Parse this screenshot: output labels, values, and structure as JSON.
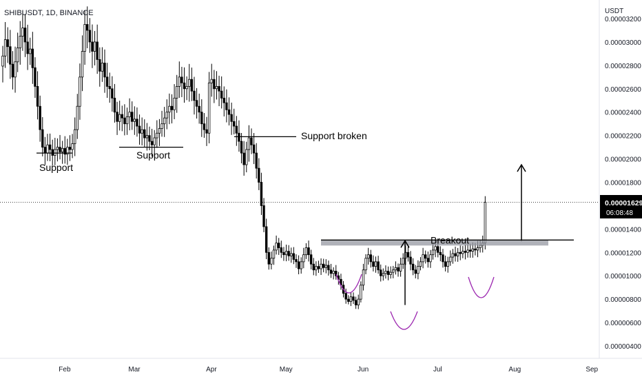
{
  "header": {
    "symbol_line": "SHIBUSDT, 1D, BINANCE"
  },
  "price_scale": {
    "unit": "USDT",
    "current_price": "0.00001629",
    "countdown": "06:08:48",
    "ticks": [
      "0.00003200",
      "0.00003000",
      "0.00002800",
      "0.00002600",
      "0.00002400",
      "0.00002200",
      "0.00002000",
      "0.00001800",
      "0.00001600",
      "0.00001400",
      "0.00001200",
      "0.00001000",
      "0.00000800",
      "0.00000600",
      "0.00000400"
    ]
  },
  "chart_data": {
    "type": "candlestick",
    "symbol": "SHIBUSDT",
    "interval": "1D",
    "exchange": "BINANCE",
    "ylabel": "USDT",
    "ylim": [
      3.2e-06,
      3.25e-05
    ],
    "y_axis_tick_values": [
      3.2e-05,
      3e-05,
      2.8e-05,
      2.6e-05,
      2.4e-05,
      2.2e-05,
      2e-05,
      1.8e-05,
      1.6e-05,
      1.4e-05,
      1.2e-05,
      1e-05,
      8e-06,
      6e-06,
      4e-06
    ],
    "x_axis_month_labels": [
      "Feb",
      "Mar",
      "Apr",
      "May",
      "Jun",
      "Jul",
      "Aug",
      "Sep"
    ],
    "x_axis_month_day_index": [
      31,
      59,
      90,
      120,
      151,
      181,
      212,
      243
    ],
    "last_price": 1.629e-05,
    "close_series_approx": [
      2.88e-05,
      3.02e-05,
      2.96e-05,
      2.81e-05,
      2.7e-05,
      2.83e-05,
      2.95e-05,
      3.05e-05,
      3.12e-05,
      3e-05,
      2.9e-05,
      2.94e-05,
      2.78e-05,
      2.62e-05,
      2.45e-05,
      2.25e-05,
      2.1e-05,
      2.05e-05,
      2.12e-05,
      2.08e-05,
      2.03e-05,
      2.08e-05,
      2.1e-05,
      2.06e-05,
      2.09e-05,
      2.04e-05,
      2.1e-05,
      2.08e-05,
      2.13e-05,
      2.25e-05,
      2.45e-05,
      2.7e-05,
      2.92e-05,
      3.15e-05,
      3.1e-05,
      3e-05,
      2.92e-05,
      3e-05,
      2.85e-05,
      2.75e-05,
      2.82e-05,
      2.7e-05,
      2.62e-05,
      2.6e-05,
      2.52e-05,
      2.4e-05,
      2.32e-05,
      2.38e-05,
      2.35e-05,
      2.3e-05,
      2.36e-05,
      2.4e-05,
      2.32e-05,
      2.34e-05,
      2.28e-05,
      2.22e-05,
      2.25e-05,
      2.18e-05,
      2.2e-05,
      2.15e-05,
      2.12e-05,
      2.18e-05,
      2.22e-05,
      2.26e-05,
      2.3e-05,
      2.35e-05,
      2.4e-05,
      2.45e-05,
      2.42e-05,
      2.52e-05,
      2.62e-05,
      2.7e-05,
      2.65e-05,
      2.6e-05,
      2.62e-05,
      2.68e-05,
      2.58e-05,
      2.5e-05,
      2.45e-05,
      2.4e-05,
      2.3e-05,
      2.25e-05,
      2.22e-05,
      2.65e-05,
      2.68e-05,
      2.6e-05,
      2.62e-05,
      2.58e-05,
      2.52e-05,
      2.48e-05,
      2.42e-05,
      2.38e-05,
      2.32e-05,
      2.28e-05,
      2.22e-05,
      2.15e-05,
      2.05e-05,
      1.95e-05,
      2.08e-05,
      2.18e-05,
      2.12e-05,
      2.05e-05,
      1.92e-05,
      1.8e-05,
      1.6e-05,
      1.42e-05,
      1.2e-05,
      1.1e-05,
      1.15e-05,
      1.22e-05,
      1.28e-05,
      1.24e-05,
      1.2e-05,
      1.18e-05,
      1.21e-05,
      1.17e-05,
      1.19e-05,
      1.14e-05,
      1.12e-05,
      1.06e-05,
      1.12e-05,
      1.18e-05,
      1.24e-05,
      1.18e-05,
      1.1e-05,
      1.05e-05,
      1.08e-05,
      1.06e-05,
      1.1e-05,
      1.07e-05,
      1.09e-05,
      1.05e-05,
      1.02e-05,
      1.04e-05,
      1e-05,
      9.7e-06,
      9.2e-06,
      8.5e-06,
      8e-06,
      7.8e-06,
      8.2e-06,
      7.9e-06,
      7.5e-06,
      8e-06,
      9.2e-06,
      1.05e-05,
      1.15e-05,
      1.18e-05,
      1.12e-05,
      1.08e-05,
      1.12e-05,
      1.05e-05,
      1e-05,
      1.02e-05,
      1.04e-05,
      1.01e-05,
      1.03e-05,
      1.05e-05,
      1.07e-05,
      1.04e-05,
      1.1e-05,
      1.15e-05,
      1.2e-05,
      1.16e-05,
      1.1e-05,
      1.05e-05,
      1.02e-05,
      1.08e-05,
      1.12e-05,
      1.18e-05,
      1.15e-05,
      1.12e-05,
      1.18e-05,
      1.22e-05,
      1.25e-05,
      1.2e-05,
      1.18e-05,
      1.12e-05,
      1.08e-05,
      1.12e-05,
      1.16e-05,
      1.19e-05,
      1.17e-05,
      1.2e-05,
      1.19e-05,
      1.21e-05,
      1.2e-05,
      1.22e-05,
      1.21e-05,
      1.23e-05,
      1.22e-05,
      1.24e-05,
      1.26e-05,
      1.28e-05,
      1.63e-05
    ],
    "annotations": [
      {
        "type": "support",
        "label": "Support",
        "price": 2.05e-05
      },
      {
        "type": "support",
        "label": "Support",
        "price": 2.1e-05
      },
      {
        "type": "support",
        "label": "Support broken",
        "price": 2.19e-05
      },
      {
        "type": "breakout",
        "label": "Breakout",
        "price": 1.3e-05
      }
    ],
    "grid": false,
    "legend": "none"
  },
  "colors": {
    "bullish_fill": "#ffffff",
    "bearish_fill": "#000000",
    "candle_outline": "#000000",
    "neckline_band": "#9598a1",
    "curve_marker": "#9c27b0",
    "price_label_bg": "#000000",
    "price_label_text": "#ffffff"
  }
}
